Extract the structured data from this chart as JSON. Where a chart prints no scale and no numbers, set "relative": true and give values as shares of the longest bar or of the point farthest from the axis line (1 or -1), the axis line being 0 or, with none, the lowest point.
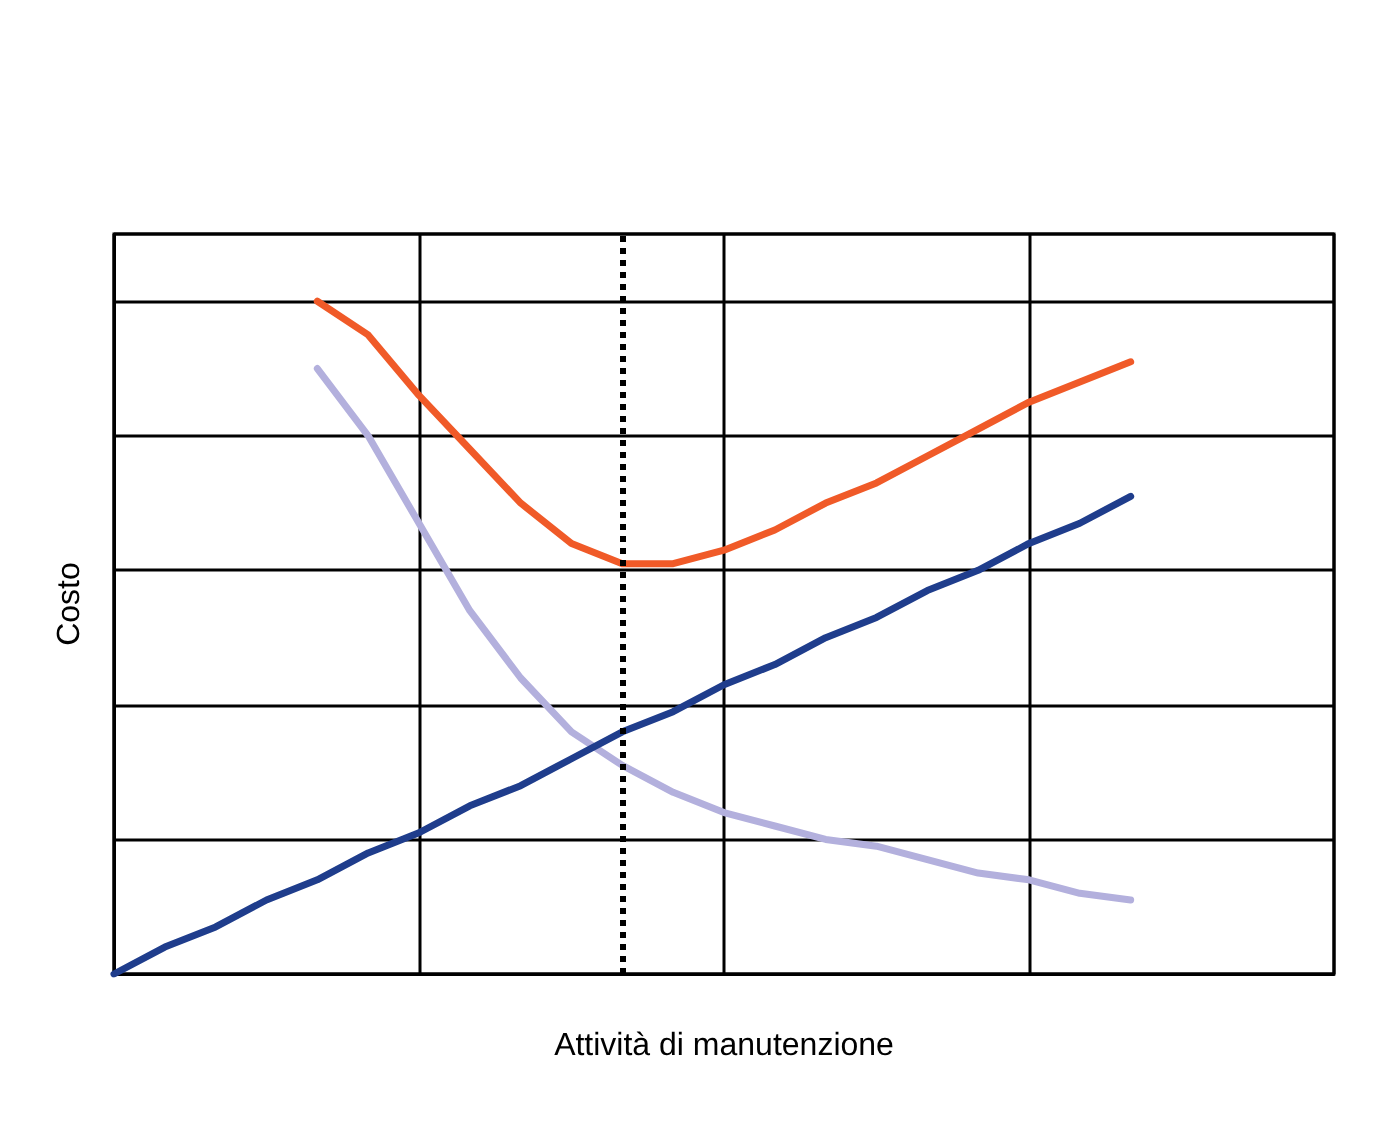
{
  "chart_data": {
    "type": "line",
    "xlabel": "Attività di manutenzione",
    "ylabel": "Costo",
    "relative": true,
    "grid": true,
    "marker": "none",
    "line_style": "solid",
    "categories": [
      null,
      null,
      null,
      null,
      null,
      null,
      null,
      null,
      null,
      null,
      null,
      null,
      null,
      null,
      null,
      null,
      null,
      null,
      null,
      null,
      null,
      null,
      null,
      null,
      null
    ],
    "series": [
      {
        "color": "#f05a28",
        "values": [
          null,
          null,
          null,
          null,
          1.0,
          0.95,
          0.86,
          0.78,
          0.7,
          0.64,
          0.61,
          0.61,
          0.63,
          0.66,
          0.7,
          0.73,
          0.77,
          0.81,
          0.85,
          0.88,
          0.91,
          null,
          null,
          null,
          null
        ]
      },
      {
        "color": "#b3b0dd",
        "values": [
          null,
          null,
          null,
          null,
          0.9,
          0.8,
          0.67,
          0.54,
          0.44,
          0.36,
          0.31,
          0.27,
          0.24,
          0.22,
          0.2,
          0.19,
          0.17,
          0.15,
          0.14,
          0.12,
          0.11,
          null,
          null,
          null,
          null
        ]
      },
      {
        "color": "#1f3d8c",
        "values": [
          0,
          0.04,
          0.07,
          0.11,
          0.14,
          0.18,
          0.21,
          0.25,
          0.28,
          0.32,
          0.36,
          0.39,
          0.43,
          0.46,
          0.5,
          0.53,
          0.57,
          0.6,
          0.64,
          0.67,
          0.71,
          null,
          null,
          null,
          null
        ]
      }
    ]
  }
}
